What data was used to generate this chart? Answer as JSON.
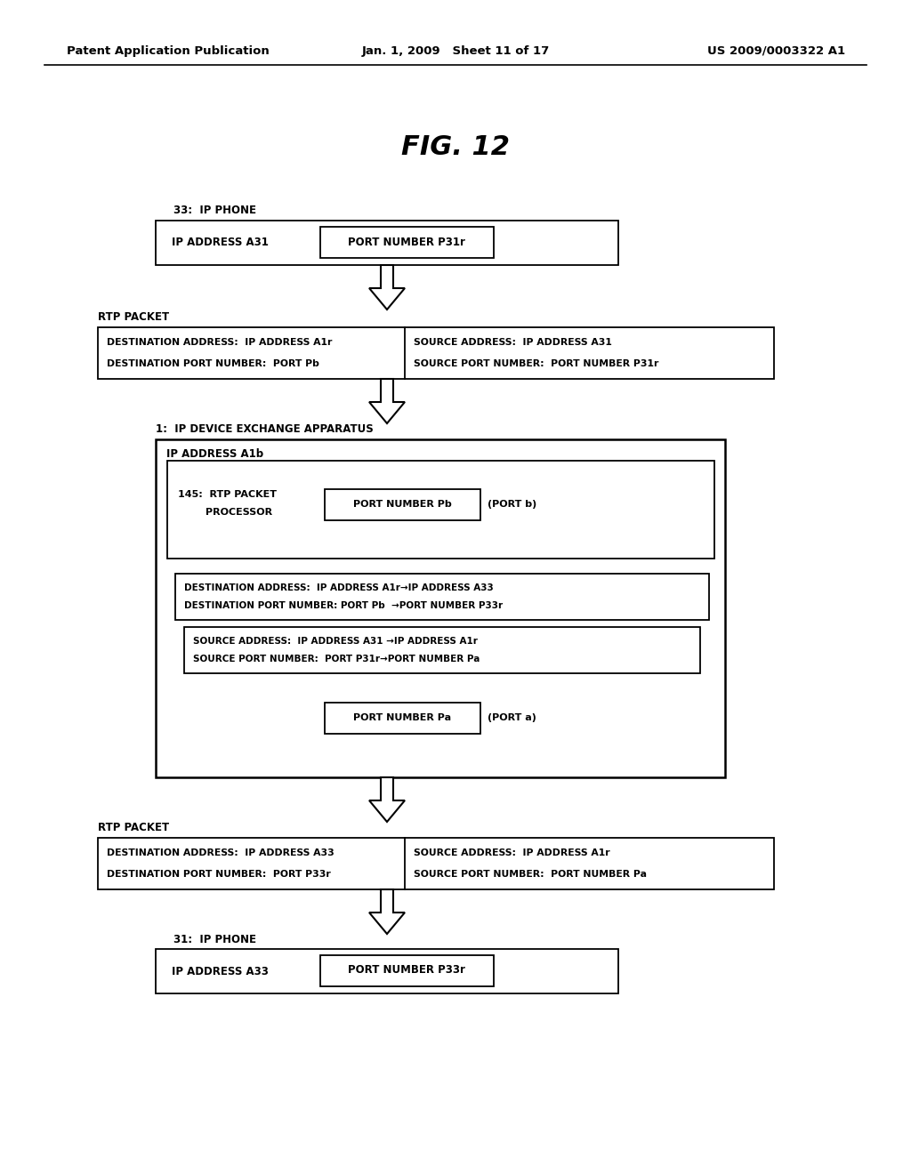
{
  "background_color": "#ffffff",
  "header_left": "Patent Application Publication",
  "header_mid": "Jan. 1, 2009   Sheet 11 of 17",
  "header_right": "US 2009/0003322 A1",
  "fig_title": "FIG. 12",
  "label_33": "33:  IP PHONE",
  "box33_left": "IP ADDRESS A31",
  "box33_right": "PORT NUMBER P31r",
  "label_rtp1": "RTP PACKET",
  "rtp1_left_line1": "DESTINATION ADDRESS:  IP ADDRESS A1r",
  "rtp1_left_line2": "DESTINATION PORT NUMBER:  PORT Pb",
  "rtp1_right_line1": "SOURCE ADDRESS:  IP ADDRESS A31",
  "rtp1_right_line2": "SOURCE PORT NUMBER:  PORT NUMBER P31r",
  "label_1": "1:  IP DEVICE EXCHANGE APPARATUS",
  "ip_addr_a1b": "IP ADDRESS A1b",
  "port_pb": "PORT NUMBER Pb",
  "port_b_label": "(PORT b)",
  "dest_mod_line1": "DESTINATION ADDRESS:  IP ADDRESS A1r→IP ADDRESS A33",
  "dest_mod_line2": "DESTINATION PORT NUMBER: PORT Pb  →PORT NUMBER P33r",
  "src_mod_line1": "SOURCE ADDRESS:  IP ADDRESS A31 →IP ADDRESS A1r",
  "src_mod_line2": "SOURCE PORT NUMBER:  PORT P31r→PORT NUMBER Pa",
  "port_pa": "PORT NUMBER Pa",
  "port_a_label": "(PORT a)",
  "label_rtp2": "RTP PACKET",
  "rtp2_left_line1": "DESTINATION ADDRESS:  IP ADDRESS A33",
  "rtp2_left_line2": "DESTINATION PORT NUMBER:  PORT P33r",
  "rtp2_right_line1": "SOURCE ADDRESS:  IP ADDRESS A1r",
  "rtp2_right_line2": "SOURCE PORT NUMBER:  PORT NUMBER Pa",
  "label_31": "31:  IP PHONE",
  "box31_left": "IP ADDRESS A33",
  "box31_right": "PORT NUMBER P33r",
  "label_145_line1": "145:  RTP PACKET",
  "label_145_line2": "        PROCESSOR"
}
